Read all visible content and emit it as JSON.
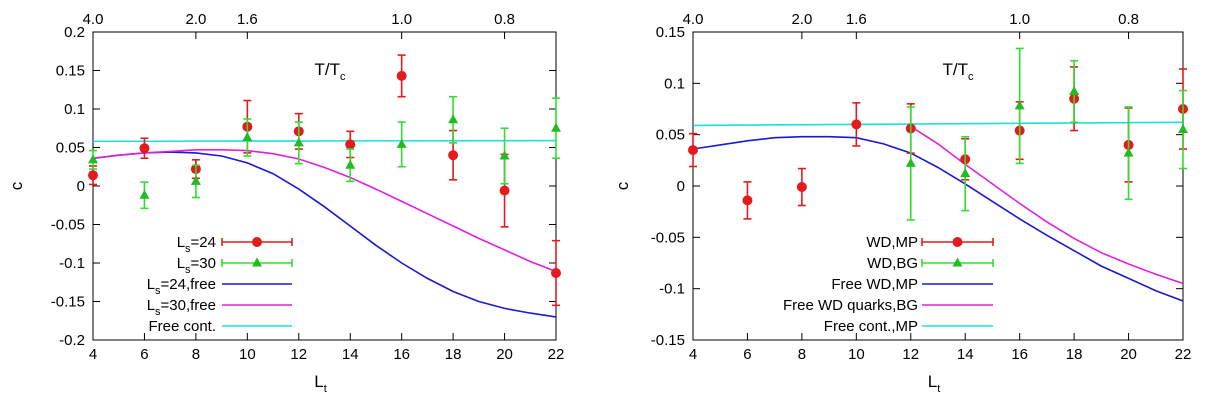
{
  "chart_data": [
    {
      "type": "scatter",
      "xlabel": "L",
      "xlabel_sub": "t",
      "ylabel": "c",
      "xlim": [
        4,
        22
      ],
      "ylim": [
        -0.2,
        0.2
      ],
      "xticks": [
        "4",
        "6",
        "8",
        "10",
        "12",
        "14",
        "16",
        "18",
        "20",
        "22"
      ],
      "yticks": [
        "-0.2",
        "-0.15",
        "-0.1",
        "-0.05",
        "0",
        "0.05",
        "0.1",
        "0.15",
        "0.2"
      ],
      "top_axis": {
        "label": "T/T",
        "label_sub": "c",
        "ticks": [
          {
            "label": "4.0",
            "x": 4
          },
          {
            "label": "2.0",
            "x": 8
          },
          {
            "label": "1.6",
            "x": 10
          },
          {
            "label": "1.0",
            "x": 16
          },
          {
            "label": "0.8",
            "x": 20
          }
        ]
      },
      "legend_position": "bottom-left",
      "series": [
        {
          "name": "L",
          "name_sub": "s",
          "name_suffix": "=24",
          "kind": "points",
          "marker": "circle",
          "color": "#e41a1c",
          "err_color": "#e41a1c",
          "points": [
            {
              "x": 4,
              "y": 0.014,
              "err": 0.012
            },
            {
              "x": 6,
              "y": 0.049,
              "err": 0.013
            },
            {
              "x": 8,
              "y": 0.022,
              "err": 0.012
            },
            {
              "x": 10,
              "y": 0.077,
              "err": 0.034
            },
            {
              "x": 12,
              "y": 0.071,
              "err": 0.023
            },
            {
              "x": 14,
              "y": 0.054,
              "err": 0.017
            },
            {
              "x": 16,
              "y": 0.143,
              "err": 0.027
            },
            {
              "x": 18,
              "y": 0.04,
              "err": 0.032
            },
            {
              "x": 20,
              "y": -0.006,
              "err": 0.047
            },
            {
              "x": 22,
              "y": -0.113,
              "err": 0.042
            }
          ]
        },
        {
          "name": "L",
          "name_sub": "s",
          "name_suffix": "=30",
          "kind": "points",
          "marker": "triangle",
          "color": "#22bb22",
          "err_color": "#33dd33",
          "points": [
            {
              "x": 4,
              "y": 0.034,
              "err": 0.012
            },
            {
              "x": 6,
              "y": -0.012,
              "err": 0.017
            },
            {
              "x": 8,
              "y": 0.006,
              "err": 0.021
            },
            {
              "x": 10,
              "y": 0.063,
              "err": 0.024
            },
            {
              "x": 12,
              "y": 0.056,
              "err": 0.027
            },
            {
              "x": 14,
              "y": 0.027,
              "err": 0.021
            },
            {
              "x": 16,
              "y": 0.054,
              "err": 0.029
            },
            {
              "x": 18,
              "y": 0.086,
              "err": 0.03
            },
            {
              "x": 20,
              "y": 0.039,
              "err": 0.036
            },
            {
              "x": 22,
              "y": 0.075,
              "err": 0.039
            }
          ]
        },
        {
          "name": "L",
          "name_sub": "s",
          "name_suffix": "=24,free",
          "kind": "line",
          "color": "#1a1ad0",
          "x": [
            4,
            5,
            6,
            7,
            8,
            9,
            10,
            11,
            12,
            13,
            14,
            15,
            16,
            17,
            18,
            19,
            20,
            21,
            22
          ],
          "values": [
            0.036,
            0.04,
            0.043,
            0.044,
            0.043,
            0.039,
            0.03,
            0.016,
            -0.004,
            -0.027,
            -0.052,
            -0.077,
            -0.1,
            -0.12,
            -0.137,
            -0.15,
            -0.159,
            -0.165,
            -0.17
          ]
        },
        {
          "name": "L",
          "name_sub": "s",
          "name_suffix": "=30,free",
          "kind": "line",
          "color": "#e020e0",
          "x": [
            4,
            5,
            6,
            7,
            8,
            9,
            10,
            11,
            12,
            13,
            14,
            15,
            16,
            17,
            18,
            19,
            20,
            21,
            22
          ],
          "values": [
            0.036,
            0.04,
            0.043,
            0.045,
            0.047,
            0.047,
            0.046,
            0.042,
            0.035,
            0.024,
            0.011,
            -0.004,
            -0.02,
            -0.036,
            -0.052,
            -0.068,
            -0.083,
            -0.098,
            -0.111
          ]
        },
        {
          "name": "Free cont.",
          "name_sub": "",
          "name_suffix": "",
          "kind": "line",
          "color": "#22dddd",
          "x": [
            4,
            22
          ],
          "values": [
            0.058,
            0.059
          ]
        }
      ]
    },
    {
      "type": "scatter",
      "xlabel": "L",
      "xlabel_sub": "t",
      "ylabel": "c",
      "xlim": [
        4,
        22
      ],
      "ylim": [
        -0.15,
        0.15
      ],
      "xticks": [
        "4",
        "6",
        "8",
        "10",
        "12",
        "14",
        "16",
        "18",
        "20",
        "22"
      ],
      "yticks": [
        "-0.15",
        "-0.1",
        "-0.05",
        "0",
        "0.05",
        "0.1",
        "0.15"
      ],
      "top_axis": {
        "label": "T/T",
        "label_sub": "c",
        "ticks": [
          {
            "label": "4.0",
            "x": 4
          },
          {
            "label": "2.0",
            "x": 8
          },
          {
            "label": "1.6",
            "x": 10
          },
          {
            "label": "1.0",
            "x": 16
          },
          {
            "label": "0.8",
            "x": 20
          }
        ]
      },
      "legend_position": "bottom-right",
      "series": [
        {
          "name": "WD,MP",
          "name_sub": "",
          "name_suffix": "",
          "kind": "points",
          "marker": "circle",
          "color": "#e41a1c",
          "err_color": "#e41a1c",
          "points": [
            {
              "x": 4,
              "y": 0.035,
              "err": 0.016
            },
            {
              "x": 6,
              "y": -0.014,
              "err": 0.018
            },
            {
              "x": 8,
              "y": -0.001,
              "err": 0.018
            },
            {
              "x": 10,
              "y": 0.06,
              "err": 0.021
            },
            {
              "x": 12,
              "y": 0.056,
              "err": 0.024
            },
            {
              "x": 14,
              "y": 0.026,
              "err": 0.02
            },
            {
              "x": 16,
              "y": 0.054,
              "err": 0.028
            },
            {
              "x": 18,
              "y": 0.085,
              "err": 0.031
            },
            {
              "x": 20,
              "y": 0.04,
              "err": 0.036
            },
            {
              "x": 22,
              "y": 0.075,
              "err": 0.039
            }
          ]
        },
        {
          "name": "WD,BG",
          "name_sub": "",
          "name_suffix": "",
          "kind": "points",
          "marker": "triangle",
          "color": "#22bb22",
          "err_color": "#33dd33",
          "points": [
            {
              "x": 12,
              "y": 0.022,
              "err": 0.055
            },
            {
              "x": 14,
              "y": 0.012,
              "err": 0.036
            },
            {
              "x": 16,
              "y": 0.078,
              "err": 0.056
            },
            {
              "x": 18,
              "y": 0.092,
              "err": 0.03
            },
            {
              "x": 20,
              "y": 0.032,
              "err": 0.045
            },
            {
              "x": 22,
              "y": 0.055,
              "err": 0.038
            }
          ]
        },
        {
          "name": "Free WD,MP",
          "name_sub": "",
          "name_suffix": "",
          "kind": "line",
          "color": "#1a1ad0",
          "x": [
            4,
            5,
            6,
            7,
            8,
            9,
            10,
            11,
            12,
            13,
            14,
            15,
            16,
            17,
            18,
            19,
            20,
            21,
            22
          ],
          "values": [
            0.036,
            0.04,
            0.044,
            0.047,
            0.048,
            0.048,
            0.047,
            0.041,
            0.032,
            0.018,
            0.002,
            -0.015,
            -0.032,
            -0.048,
            -0.063,
            -0.078,
            -0.09,
            -0.102,
            -0.112
          ]
        },
        {
          "name": "Free WD quarks,BG",
          "name_sub": "",
          "name_suffix": "",
          "kind": "line",
          "color": "#e020e0",
          "x": [
            12,
            13,
            14,
            15,
            16,
            17,
            18,
            19,
            20,
            21,
            22
          ],
          "values": [
            0.058,
            0.041,
            0.021,
            0.002,
            -0.017,
            -0.035,
            -0.051,
            -0.065,
            -0.076,
            -0.086,
            -0.095
          ]
        },
        {
          "name": "Free cont.,MP",
          "name_sub": "",
          "name_suffix": "",
          "kind": "line",
          "color": "#22dddd",
          "x": [
            4,
            22
          ],
          "values": [
            0.059,
            0.062
          ]
        }
      ]
    }
  ]
}
